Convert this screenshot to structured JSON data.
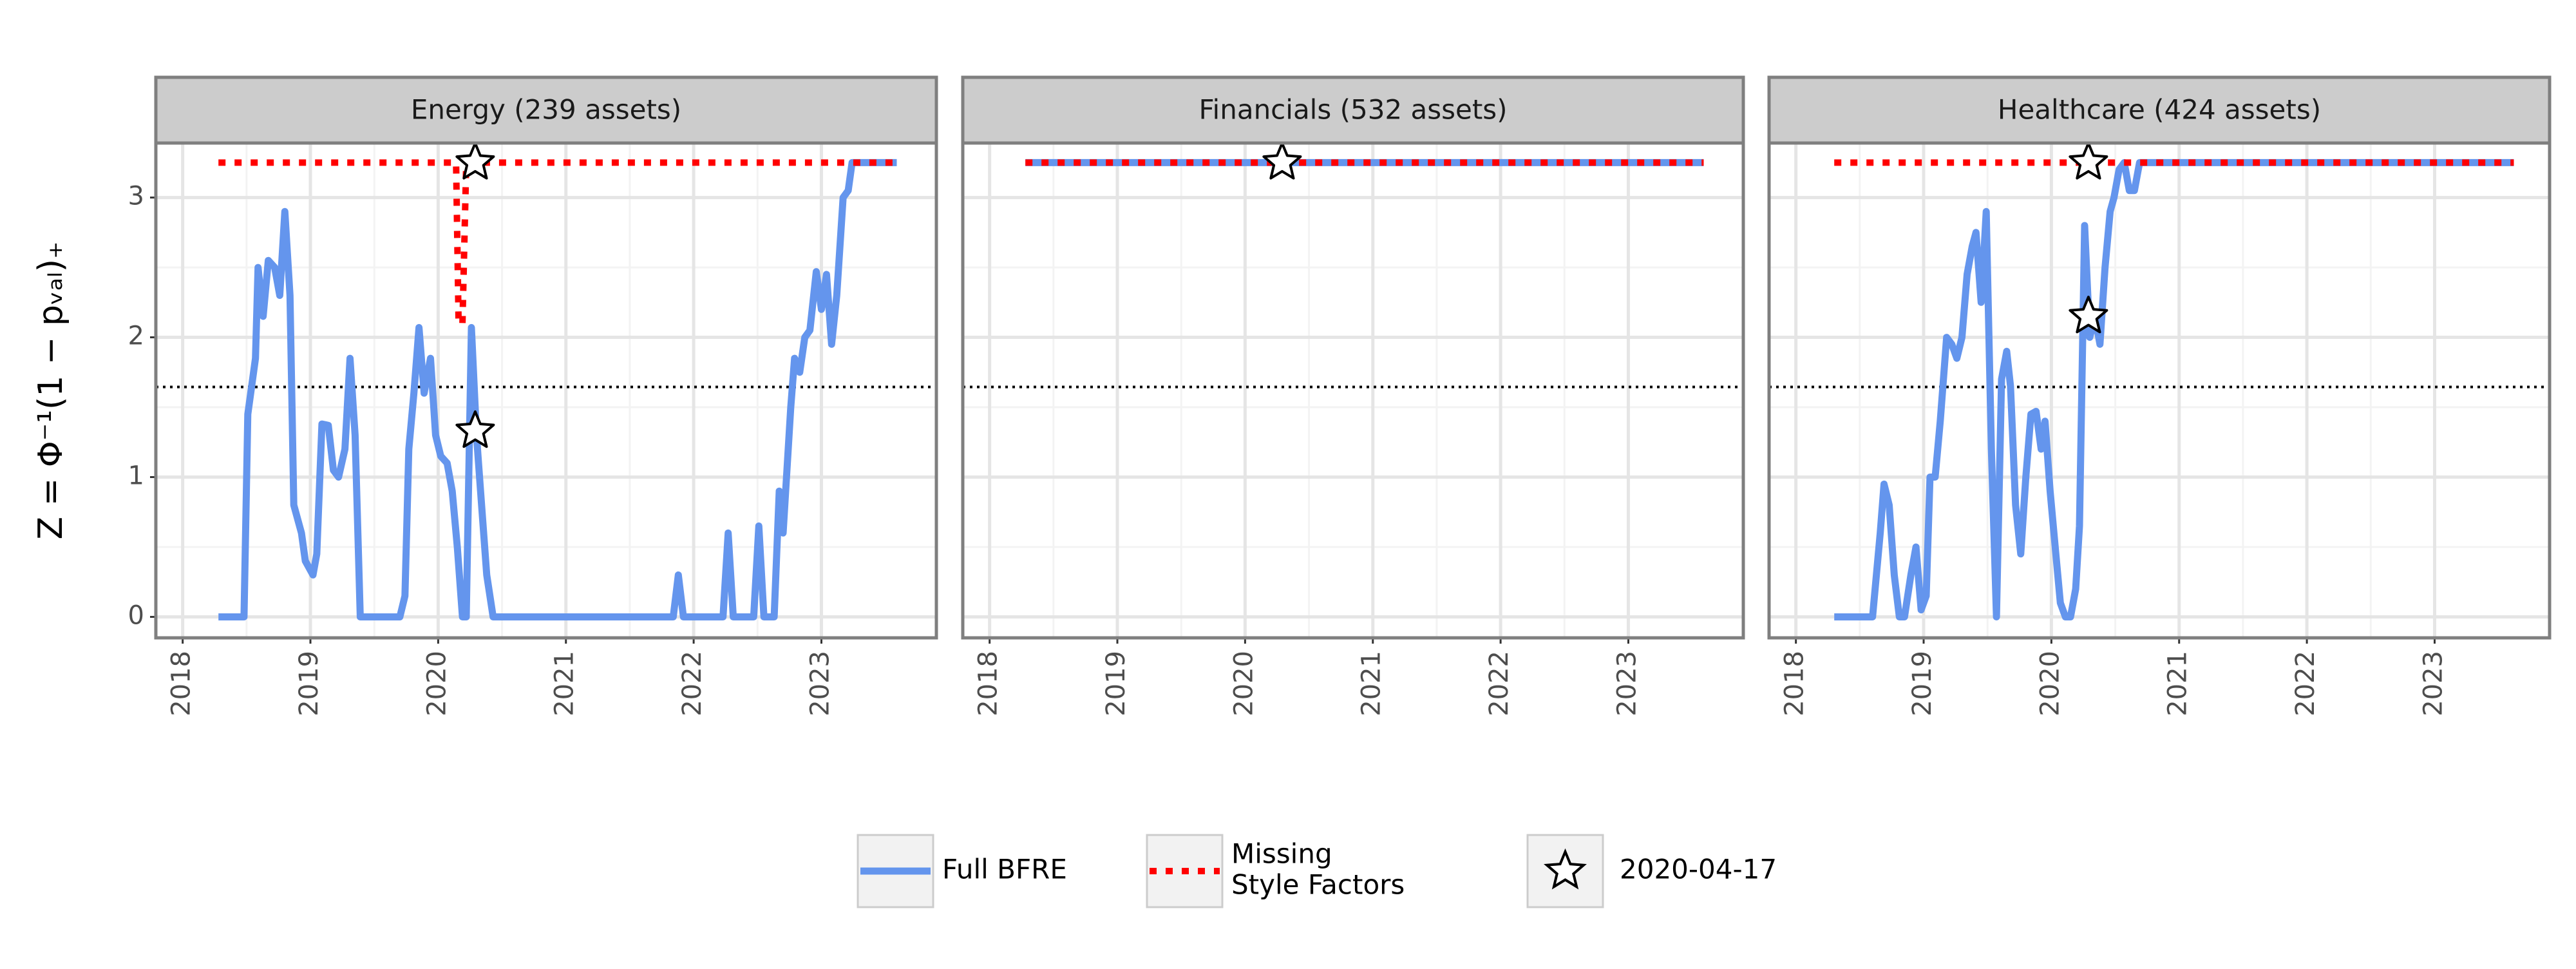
{
  "chart_data": {
    "type": "line",
    "y_label": "Z = Φ⁻¹(1 − pᵥₐₗ)₊",
    "xlim": [
      2017.79,
      2023.9
    ],
    "ylim": [
      -0.15,
      3.39
    ],
    "xticks": [
      2018,
      2019,
      2020,
      2021,
      2022,
      2023
    ],
    "yticks": [
      0,
      1,
      2,
      3
    ],
    "grid": true,
    "hline": 1.645,
    "legend_position": "bottom",
    "star_x": 2020.29,
    "legend": [
      {
        "name": "Full BFRE",
        "color": "#6495ed",
        "style": "solid"
      },
      {
        "name": [
          "Missing",
          "Style Factors"
        ],
        "color": "#ff0000",
        "style": "dotted"
      },
      {
        "name": "2020-04-17",
        "marker": "star"
      }
    ],
    "panels": [
      {
        "title": "Energy (239 assets)",
        "series": [
          {
            "x": [
              2018.28,
              2018.48,
              2018.51,
              2018.57,
              2018.59,
              2018.63,
              2018.67,
              2018.72,
              2018.76,
              2018.8,
              2018.84,
              2018.87,
              2018.93,
              2018.96,
              2019.02,
              2019.05,
              2019.09,
              2019.14,
              2019.18,
              2019.22,
              2019.27,
              2019.31,
              2019.35,
              2019.39,
              2019.7,
              2019.74,
              2019.77,
              2019.81,
              2019.85,
              2019.89,
              2019.94,
              2019.98,
              2020.02,
              2020.07,
              2020.11,
              2020.15,
              2020.19,
              2020.22,
              2020.26,
              2020.3,
              2020.34,
              2020.38,
              2020.43,
              2021.84,
              2021.88,
              2021.92,
              2022.23,
              2022.27,
              2022.31,
              2022.47,
              2022.51,
              2022.55,
              2022.63,
              2022.67,
              2022.7,
              2022.76,
              2022.79,
              2022.83,
              2022.87,
              2022.91,
              2022.96,
              2023.0,
              2023.04,
              2023.08,
              2023.12,
              2023.17,
              2023.21,
              2023.24,
              2023.59
            ],
            "values": [
              0,
              0,
              1.45,
              1.85,
              2.5,
              2.15,
              2.55,
              2.5,
              2.3,
              2.9,
              2.3,
              0.8,
              0.6,
              0.4,
              0.3,
              0.45,
              1.38,
              1.37,
              1.05,
              1.0,
              1.2,
              1.85,
              1.3,
              0,
              0,
              0.15,
              1.2,
              1.6,
              2.07,
              1.6,
              1.85,
              1.3,
              1.15,
              1.1,
              0.9,
              0.5,
              0,
              0,
              2.07,
              1.3,
              0.8,
              0.3,
              0,
              0,
              0.3,
              0,
              0,
              0.6,
              0,
              0,
              0.65,
              0,
              0,
              0.9,
              0.6,
              1.5,
              1.85,
              1.75,
              2.0,
              2.05,
              2.47,
              2.2,
              2.45,
              1.95,
              2.3,
              3.0,
              3.05,
              3.25,
              3.25
            ]
          },
          {
            "x": [
              2018.28,
              2020.14,
              2020.16,
              2020.19,
              2020.22,
              2023.59
            ],
            "values": [
              3.25,
              3.25,
              2.1,
              2.1,
              3.25,
              3.25
            ]
          }
        ],
        "stars": [
          1.33,
          3.25
        ]
      },
      {
        "title": "Financials (532 assets)",
        "series": [
          {
            "x": [
              2018.28,
              2023.59
            ],
            "values": [
              3.25,
              3.25
            ]
          },
          {
            "x": [
              2018.28,
              2023.59
            ],
            "values": [
              3.25,
              3.25
            ]
          }
        ],
        "stars": [
          3.25
        ]
      },
      {
        "title": "Healthcare (424 assets)",
        "series": [
          {
            "x": [
              2018.3,
              2018.6,
              2018.66,
              2018.69,
              2018.73,
              2018.77,
              2018.81,
              2018.85,
              2018.9,
              2018.94,
              2018.98,
              2019.02,
              2019.05,
              2019.09,
              2019.13,
              2019.18,
              2019.22,
              2019.26,
              2019.3,
              2019.34,
              2019.38,
              2019.41,
              2019.45,
              2019.49,
              2019.53,
              2019.57,
              2019.61,
              2019.65,
              2019.68,
              2019.72,
              2019.76,
              2019.8,
              2019.84,
              2019.88,
              2019.92,
              2019.95,
              2019.99,
              2020.03,
              2020.07,
              2020.11,
              2020.15,
              2020.19,
              2020.22,
              2020.26,
              2020.3,
              2020.34,
              2020.38,
              2020.42,
              2020.46,
              2020.49,
              2020.53,
              2020.57,
              2020.61,
              2020.65,
              2020.69,
              2023.62
            ],
            "values": [
              0,
              0,
              0.6,
              0.95,
              0.8,
              0.3,
              0,
              0,
              0.3,
              0.5,
              0.05,
              0.15,
              1.0,
              1.0,
              1.4,
              2.0,
              1.95,
              1.85,
              2.0,
              2.45,
              2.65,
              2.75,
              2.25,
              2.9,
              1.2,
              0,
              1.7,
              1.9,
              1.65,
              0.8,
              0.45,
              1.0,
              1.45,
              1.47,
              1.2,
              1.4,
              0.9,
              0.5,
              0.1,
              0,
              0,
              0.2,
              0.65,
              2.8,
              2.0,
              2.15,
              1.95,
              2.5,
              2.9,
              3.0,
              3.2,
              3.25,
              3.05,
              3.05,
              3.25,
              3.25
            ]
          },
          {
            "x": [
              2018.3,
              2023.62
            ],
            "values": [
              3.25,
              3.25
            ]
          }
        ],
        "stars": [
          2.15,
          3.25
        ]
      }
    ]
  }
}
